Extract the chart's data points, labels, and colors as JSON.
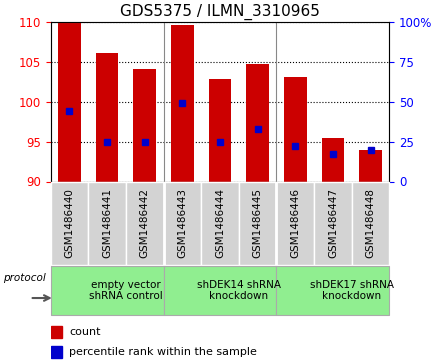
{
  "title": "GDS5375 / ILMN_3310965",
  "samples": [
    "GSM1486440",
    "GSM1486441",
    "GSM1486442",
    "GSM1486443",
    "GSM1486444",
    "GSM1486445",
    "GSM1486446",
    "GSM1486447",
    "GSM1486448"
  ],
  "counts": [
    110.3,
    106.1,
    104.1,
    109.6,
    102.8,
    104.7,
    103.1,
    95.4,
    93.9
  ],
  "percentiles": [
    44,
    25,
    25,
    49,
    25,
    33,
    22,
    17,
    20
  ],
  "bar_bottom": 90,
  "left_ylim": [
    90,
    110
  ],
  "right_ylim": [
    0,
    100
  ],
  "left_yticks": [
    90,
    95,
    100,
    105,
    110
  ],
  "right_yticks": [
    0,
    25,
    50,
    75,
    100
  ],
  "right_yticklabels": [
    "0",
    "25",
    "50",
    "75",
    "100%"
  ],
  "bar_color": "#cc0000",
  "percentile_color": "#0000cc",
  "bar_width": 0.6,
  "groups": [
    {
      "label": "empty vector\nshRNA control",
      "start": 0,
      "end": 3
    },
    {
      "label": "shDEK14 shRNA\nknockdown",
      "start": 3,
      "end": 6
    },
    {
      "label": "shDEK17 shRNA\nknockdown",
      "start": 6,
      "end": 9
    }
  ],
  "group_color": "#90ee90",
  "sample_box_color": "#d3d3d3",
  "protocol_label": "protocol",
  "legend_count_label": "count",
  "legend_percentile_label": "percentile rank within the sample",
  "title_fontsize": 11,
  "group_label_fontsize": 7.5,
  "sample_label_fontsize": 7.5
}
